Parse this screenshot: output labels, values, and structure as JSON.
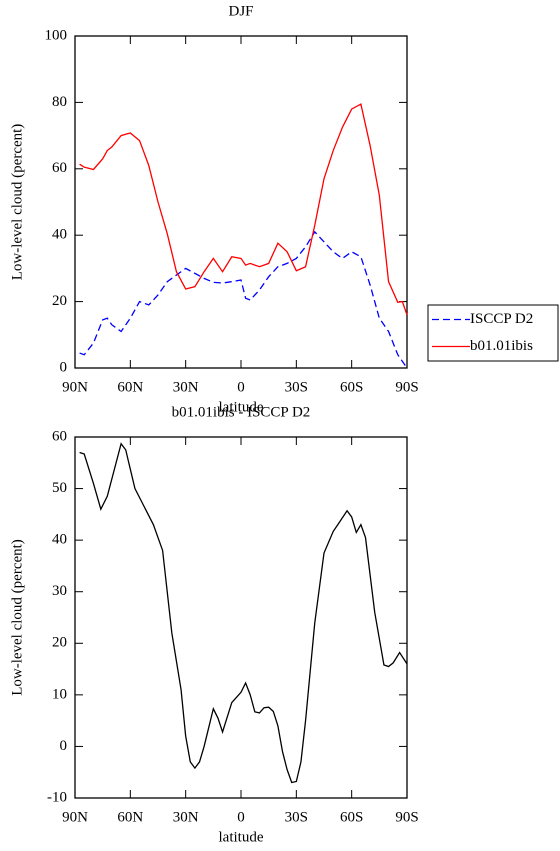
{
  "chart_data": [
    {
      "type": "line",
      "title": "DJF",
      "xlabel": "latitude",
      "ylabel": "Low-level cloud (percent)",
      "x": [
        87.5,
        85,
        80,
        75,
        72.5,
        70,
        65,
        60,
        55,
        50,
        45,
        40,
        35,
        30,
        25,
        20,
        15,
        10,
        5,
        0,
        -2.5,
        -5,
        -10,
        -15,
        -20,
        -25,
        -30,
        -35,
        -40,
        -45,
        -50,
        -55,
        -60,
        -65,
        -70,
        -75,
        -80,
        -85,
        -87.5,
        -90
      ],
      "series": [
        {
          "name": "ISCCP D2",
          "color": "#0000ff",
          "line_style": "dashed",
          "values": [
            4.5,
            4,
            7.5,
            14.5,
            15,
            13,
            11,
            15,
            20,
            19,
            22,
            26,
            28,
            30,
            28.5,
            27,
            25.8,
            25.6,
            26,
            26.5,
            21,
            20.5,
            23.5,
            27.5,
            30.5,
            31.5,
            33,
            36.5,
            41,
            38,
            35,
            33,
            35,
            33.5,
            25,
            15,
            11,
            4,
            2,
            0
          ]
        },
        {
          "name": "b01.01ibis",
          "color": "#ff0000",
          "line_style": "solid",
          "values": [
            61.4,
            60.5,
            59.8,
            63,
            65.5,
            66.6,
            70,
            70.8,
            68.5,
            61,
            50,
            40.5,
            29,
            23.8,
            24.5,
            29,
            33,
            29,
            33.5,
            33,
            31,
            31.5,
            30.5,
            31.5,
            37.6,
            35,
            29.3,
            30.5,
            43,
            57,
            65.5,
            72.5,
            78,
            79.5,
            67,
            52,
            26,
            19.8,
            20,
            16
          ]
        }
      ],
      "xlim": [
        90,
        -90
      ],
      "xticks": [
        {
          "value": 90,
          "label": "90N"
        },
        {
          "value": 60,
          "label": "60N"
        },
        {
          "value": 30,
          "label": "30N"
        },
        0,
        {
          "value": -30,
          "label": "30S"
        },
        {
          "value": -60,
          "label": "60S"
        },
        {
          "value": -90,
          "label": "90S"
        }
      ],
      "ylim": [
        0,
        100
      ],
      "yticks": [
        0,
        20,
        40,
        60,
        80,
        100
      ],
      "legend": "right"
    },
    {
      "type": "line",
      "title": "b01.01ibis - ISCCP D2",
      "xlabel": "latitude",
      "ylabel": "Low-level cloud (percent)",
      "x": [
        87.5,
        85,
        80,
        76,
        72.5,
        65,
        62.5,
        57.5,
        52.5,
        47.5,
        42.5,
        37.5,
        32.5,
        30,
        27.5,
        25,
        22.5,
        20,
        15,
        12.5,
        10,
        5,
        2.5,
        0,
        -2.5,
        -5,
        -7.5,
        -10,
        -12.5,
        -15,
        -17.5,
        -20,
        -22.5,
        -25,
        -27.5,
        -30,
        -32.5,
        -35,
        -40,
        -45,
        -50,
        -52.5,
        -57.5,
        -60,
        -62.5,
        -65,
        -67.5,
        -72.5,
        -77.5,
        -80,
        -82.5,
        -86,
        -90
      ],
      "values": [
        57,
        56.7,
        51,
        46,
        48.5,
        58.7,
        57.5,
        50,
        46.5,
        43,
        38,
        22,
        11,
        2,
        -3,
        -4.2,
        -3,
        0,
        7.3,
        5.5,
        2.8,
        8.5,
        9.5,
        10.5,
        12.3,
        10,
        6.7,
        6.5,
        7.5,
        7.6,
        6.8,
        4,
        -1,
        -4.5,
        -7,
        -6.8,
        -3,
        5,
        24,
        37.5,
        41.7,
        43,
        45.7,
        44.5,
        41.5,
        43,
        40.5,
        26,
        15.8,
        15.5,
        16.2,
        18.2,
        16
      ],
      "color": "#000000",
      "line_style": "solid",
      "xlim": [
        90,
        -90
      ],
      "xticks": [
        {
          "value": 90,
          "label": "90N"
        },
        {
          "value": 60,
          "label": "60N"
        },
        {
          "value": 30,
          "label": "30N"
        },
        0,
        {
          "value": -30,
          "label": "30S"
        },
        {
          "value": -60,
          "label": "60S"
        },
        {
          "value": -90,
          "label": "90S"
        }
      ],
      "ylim": [
        -10,
        60
      ],
      "yticks": [
        -10,
        0,
        10,
        20,
        30,
        40,
        50,
        60
      ]
    }
  ]
}
